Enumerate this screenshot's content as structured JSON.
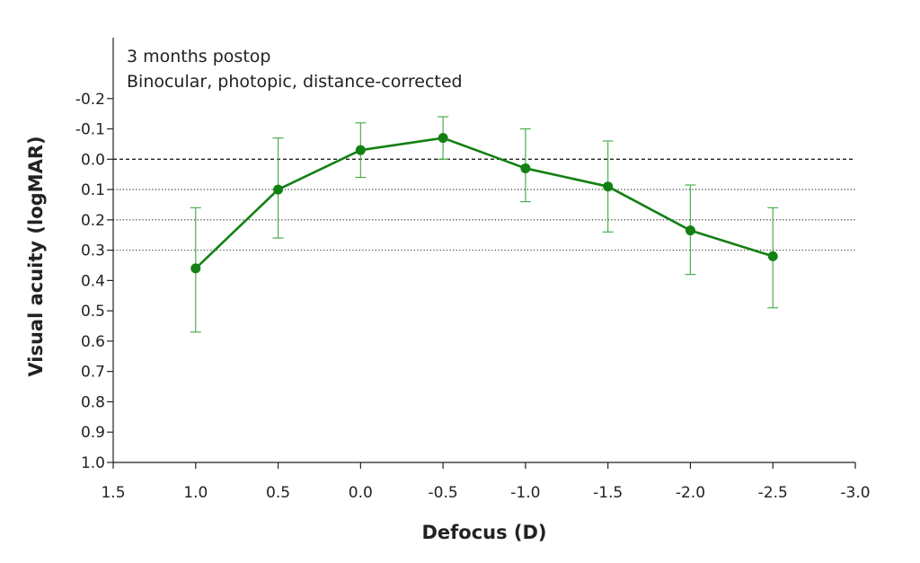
{
  "chart_data": {
    "type": "line",
    "title": "",
    "annotations": [
      "3 months postop",
      "Binocular, photopic, distance-corrected"
    ],
    "xlabel": "Defocus (D)",
    "ylabel": "Visual acuity (logMAR)",
    "xlim": [
      1.5,
      -3.0
    ],
    "ylim": [
      1.0,
      -0.3
    ],
    "y_inverted": true,
    "x_ticks": [
      "1.5",
      "1.0",
      "0.5",
      "0.0",
      "-0.5",
      "-1.0",
      "-1.5",
      "-2.0",
      "-2.5",
      "-3.0"
    ],
    "x_tick_values": [
      1.5,
      1.0,
      0.5,
      0.0,
      -0.5,
      -1.0,
      -1.5,
      -2.0,
      -2.5,
      -3.0
    ],
    "y_ticks": [
      "-0.2",
      "-0.1",
      "0.0",
      "0.1",
      "0.2",
      "0.3",
      "0.4",
      "0.5",
      "0.6",
      "0.7",
      "0.8",
      "0.9",
      "1.0"
    ],
    "y_tick_values": [
      -0.2,
      -0.1,
      0.0,
      0.1,
      0.2,
      0.3,
      0.4,
      0.5,
      0.6,
      0.7,
      0.8,
      0.9,
      1.0
    ],
    "reference_lines": [
      {
        "y": 0.0,
        "style": "dashed"
      },
      {
        "y": 0.1,
        "style": "dotted"
      },
      {
        "y": 0.2,
        "style": "dotted"
      },
      {
        "y": 0.3,
        "style": "dotted"
      }
    ],
    "grid": false,
    "legend": "none",
    "color": "#138013",
    "series": [
      {
        "x": [
          1.0,
          0.5,
          0.0,
          -0.5,
          -1.0,
          -1.5,
          -2.0,
          -2.5
        ],
        "y": [
          0.36,
          0.1,
          -0.03,
          -0.07,
          0.03,
          0.09,
          0.235,
          0.32
        ],
        "err_low": [
          0.16,
          -0.07,
          -0.12,
          -0.14,
          -0.1,
          -0.06,
          0.085,
          0.16
        ],
        "err_high": [
          0.57,
          0.26,
          0.06,
          0.0,
          0.14,
          0.24,
          0.38,
          0.49
        ]
      }
    ]
  }
}
